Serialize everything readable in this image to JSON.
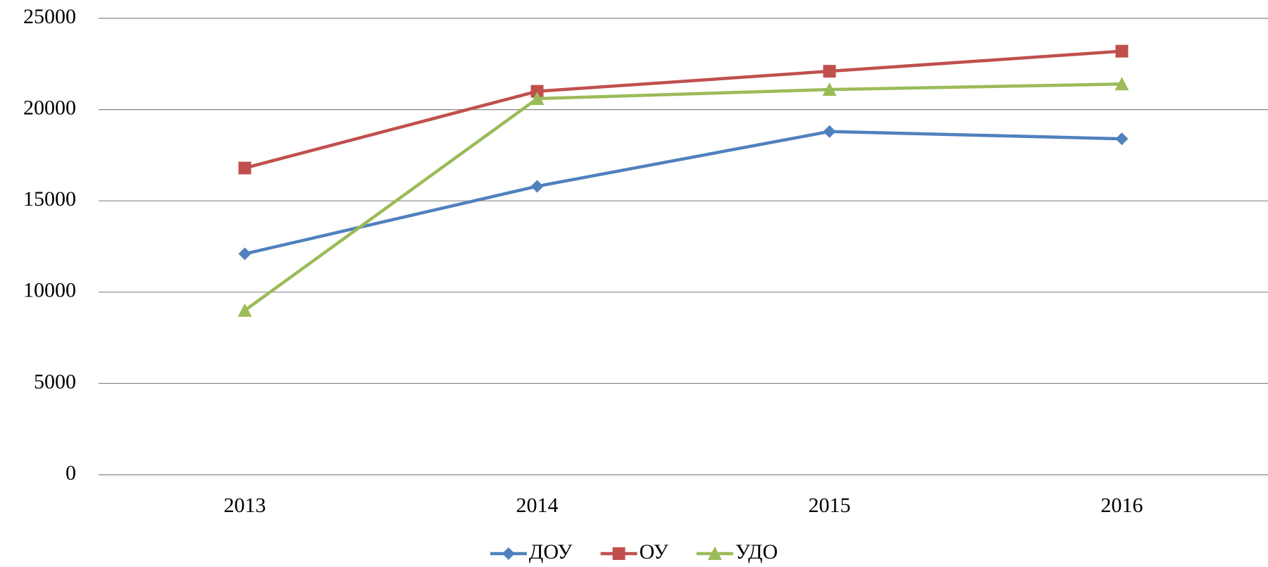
{
  "chart_data": {
    "type": "line",
    "categories": [
      "2013",
      "2014",
      "2015",
      "2016"
    ],
    "series": [
      {
        "name": "ДОУ",
        "color": "#4f81bd",
        "marker": "diamond",
        "values": [
          12100,
          15800,
          18800,
          18400
        ]
      },
      {
        "name": "ОУ",
        "color": "#c0504d",
        "marker": "square",
        "values": [
          16800,
          21000,
          22100,
          23200
        ]
      },
      {
        "name": "УДО",
        "color": "#9bbb59",
        "marker": "triangle",
        "values": [
          9000,
          20600,
          21100,
          21400
        ]
      }
    ],
    "ylim": [
      0,
      25000
    ],
    "yticks": [
      0,
      5000,
      10000,
      15000,
      20000,
      25000
    ],
    "grid": true,
    "legend": "bottom"
  }
}
